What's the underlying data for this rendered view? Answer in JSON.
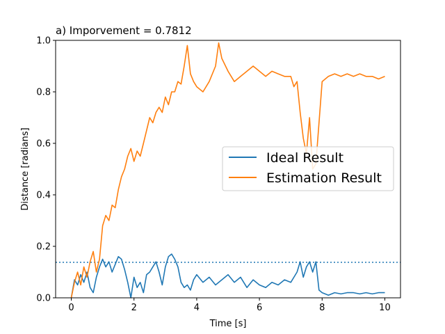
{
  "chart_data": {
    "type": "line",
    "title": "a) Imporvement = 0.7812",
    "xlabel": "Time [s]",
    "ylabel": "Distance [radians]",
    "xlim": [
      -0.5,
      10.5
    ],
    "ylim": [
      0.0,
      1.0
    ],
    "xticks": [
      0,
      2,
      4,
      6,
      8,
      10
    ],
    "xtick_labels": [
      "0",
      "2",
      "4",
      "6",
      "8",
      "10"
    ],
    "yticks": [
      0.0,
      0.2,
      0.4,
      0.6,
      0.8,
      1.0
    ],
    "ytick_labels": [
      "0.0",
      "0.2",
      "0.4",
      "0.6",
      "0.8",
      "1.0"
    ],
    "grid": false,
    "legend_position": "center-right",
    "threshold": {
      "y": 0.138,
      "style": "dotted",
      "color": "#1f77b4"
    },
    "series": [
      {
        "name": "Ideal Result",
        "color": "#1f77b4",
        "x": [
          0,
          0.1,
          0.2,
          0.3,
          0.4,
          0.5,
          0.6,
          0.7,
          0.8,
          0.9,
          1.0,
          1.1,
          1.2,
          1.3,
          1.4,
          1.5,
          1.6,
          1.7,
          1.8,
          1.9,
          2.0,
          2.1,
          2.2,
          2.3,
          2.4,
          2.5,
          2.6,
          2.7,
          2.8,
          2.9,
          3.0,
          3.1,
          3.2,
          3.3,
          3.4,
          3.5,
          3.6,
          3.7,
          3.8,
          3.9,
          4.0,
          4.2,
          4.4,
          4.6,
          4.8,
          5.0,
          5.2,
          5.4,
          5.6,
          5.8,
          6.0,
          6.2,
          6.4,
          6.6,
          6.8,
          7.0,
          7.2,
          7.3,
          7.4,
          7.5,
          7.6,
          7.7,
          7.8,
          7.9,
          8.0,
          8.2,
          8.4,
          8.6,
          8.8,
          9.0,
          9.2,
          9.4,
          9.6,
          9.8,
          10.0
        ],
        "y": [
          0.0,
          0.07,
          0.05,
          0.09,
          0.06,
          0.1,
          0.04,
          0.02,
          0.08,
          0.12,
          0.15,
          0.12,
          0.14,
          0.1,
          0.13,
          0.16,
          0.15,
          0.11,
          0.06,
          0.0,
          0.08,
          0.04,
          0.06,
          0.02,
          0.09,
          0.1,
          0.12,
          0.14,
          0.1,
          0.05,
          0.12,
          0.16,
          0.17,
          0.15,
          0.12,
          0.06,
          0.04,
          0.05,
          0.03,
          0.07,
          0.09,
          0.06,
          0.08,
          0.05,
          0.07,
          0.09,
          0.06,
          0.08,
          0.04,
          0.07,
          0.05,
          0.04,
          0.06,
          0.05,
          0.07,
          0.06,
          0.1,
          0.14,
          0.08,
          0.12,
          0.14,
          0.1,
          0.14,
          0.03,
          0.02,
          0.01,
          0.02,
          0.015,
          0.02,
          0.02,
          0.015,
          0.02,
          0.015,
          0.02,
          0.02
        ]
      },
      {
        "name": "Estimation Result",
        "color": "#ff7f0e",
        "x": [
          0,
          0.1,
          0.2,
          0.3,
          0.4,
          0.5,
          0.6,
          0.7,
          0.8,
          0.9,
          1.0,
          1.1,
          1.2,
          1.3,
          1.4,
          1.5,
          1.6,
          1.7,
          1.8,
          1.9,
          2.0,
          2.1,
          2.2,
          2.3,
          2.4,
          2.5,
          2.6,
          2.7,
          2.8,
          2.9,
          3.0,
          3.1,
          3.2,
          3.3,
          3.4,
          3.5,
          3.6,
          3.7,
          3.8,
          3.9,
          4.0,
          4.2,
          4.4,
          4.6,
          4.7,
          4.8,
          5.0,
          5.2,
          5.4,
          5.6,
          5.8,
          6.0,
          6.2,
          6.4,
          6.6,
          6.8,
          7.0,
          7.1,
          7.2,
          7.3,
          7.4,
          7.5,
          7.6,
          7.7,
          7.8,
          7.9,
          8.0,
          8.2,
          8.4,
          8.6,
          8.8,
          9.0,
          9.2,
          9.4,
          9.6,
          9.8,
          10.0
        ],
        "y": [
          0.0,
          0.06,
          0.1,
          0.05,
          0.12,
          0.08,
          0.14,
          0.18,
          0.1,
          0.15,
          0.28,
          0.32,
          0.3,
          0.36,
          0.35,
          0.42,
          0.47,
          0.5,
          0.55,
          0.58,
          0.53,
          0.57,
          0.55,
          0.6,
          0.65,
          0.7,
          0.68,
          0.72,
          0.74,
          0.72,
          0.78,
          0.75,
          0.8,
          0.8,
          0.84,
          0.83,
          0.9,
          0.98,
          0.87,
          0.84,
          0.82,
          0.8,
          0.84,
          0.9,
          0.99,
          0.93,
          0.88,
          0.84,
          0.86,
          0.88,
          0.9,
          0.88,
          0.86,
          0.88,
          0.87,
          0.86,
          0.86,
          0.82,
          0.84,
          0.72,
          0.62,
          0.56,
          0.7,
          0.5,
          0.52,
          0.68,
          0.84,
          0.86,
          0.87,
          0.86,
          0.87,
          0.86,
          0.87,
          0.86,
          0.86,
          0.85,
          0.86
        ]
      }
    ]
  }
}
